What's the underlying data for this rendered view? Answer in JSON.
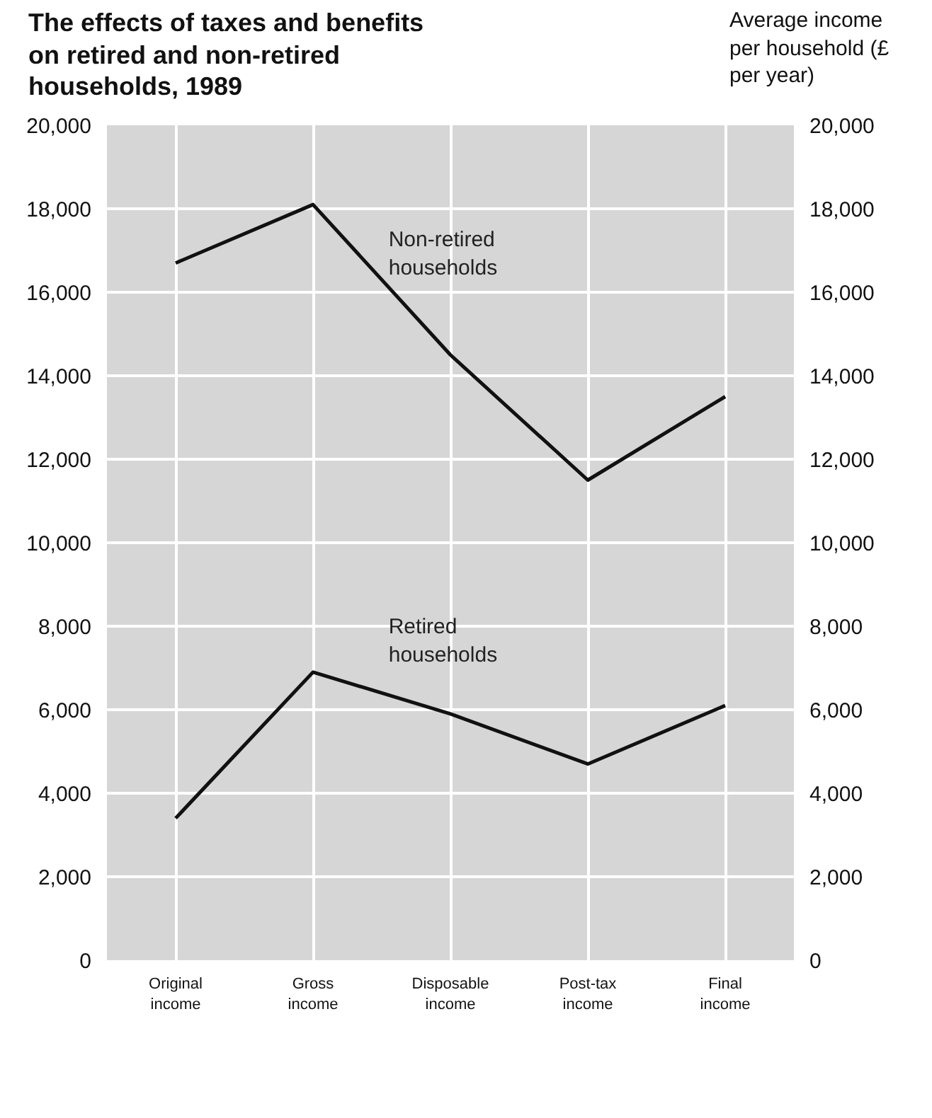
{
  "chart_data": {
    "type": "line",
    "title": "The effects of taxes and benefits on retired and non-retired households, 1989",
    "y2label": "Average income per household (£ per year)",
    "categories": [
      "Original income",
      "Gross income",
      "Disposable income",
      "Post-tax income",
      "Final income"
    ],
    "series": [
      {
        "name": "Non-retired households",
        "color": "#111111",
        "values": [
          16700,
          18100,
          14500,
          11500,
          13500
        ]
      },
      {
        "name": "Retired households",
        "color": "#111111",
        "values": [
          3400,
          6900,
          5900,
          4700,
          6100
        ]
      }
    ],
    "ylim": [
      0,
      20000
    ],
    "yticks": [
      {
        "value": 0,
        "label": "0"
      },
      {
        "value": 2000,
        "label": "2,000"
      },
      {
        "value": 4000,
        "label": "4,000"
      },
      {
        "value": 6000,
        "label": "6,000"
      },
      {
        "value": 8000,
        "label": "8,000"
      },
      {
        "value": 10000,
        "label": "10,000"
      },
      {
        "value": 12000,
        "label": "12,000"
      },
      {
        "value": 14000,
        "label": "14,000"
      },
      {
        "value": 16000,
        "label": "16,000"
      },
      {
        "value": 18000,
        "label": "18,000"
      },
      {
        "value": 20000,
        "label": "20,000"
      }
    ],
    "y2lim": [
      0,
      20000
    ],
    "y2ticks": [
      {
        "value": 0,
        "label": "0"
      },
      {
        "value": 2000,
        "label": "2,000"
      },
      {
        "value": 4000,
        "label": "4,000"
      },
      {
        "value": 6000,
        "label": "6,000"
      },
      {
        "value": 8000,
        "label": "8,000"
      },
      {
        "value": 10000,
        "label": "10,000"
      },
      {
        "value": 12000,
        "label": "12,000"
      },
      {
        "value": 14000,
        "label": "14,000"
      },
      {
        "value": 16000,
        "label": "16,000"
      },
      {
        "value": 18000,
        "label": "18,000"
      },
      {
        "value": 20000,
        "label": "20,000"
      }
    ],
    "grid": true,
    "marker": "none",
    "line_style": "solid"
  }
}
